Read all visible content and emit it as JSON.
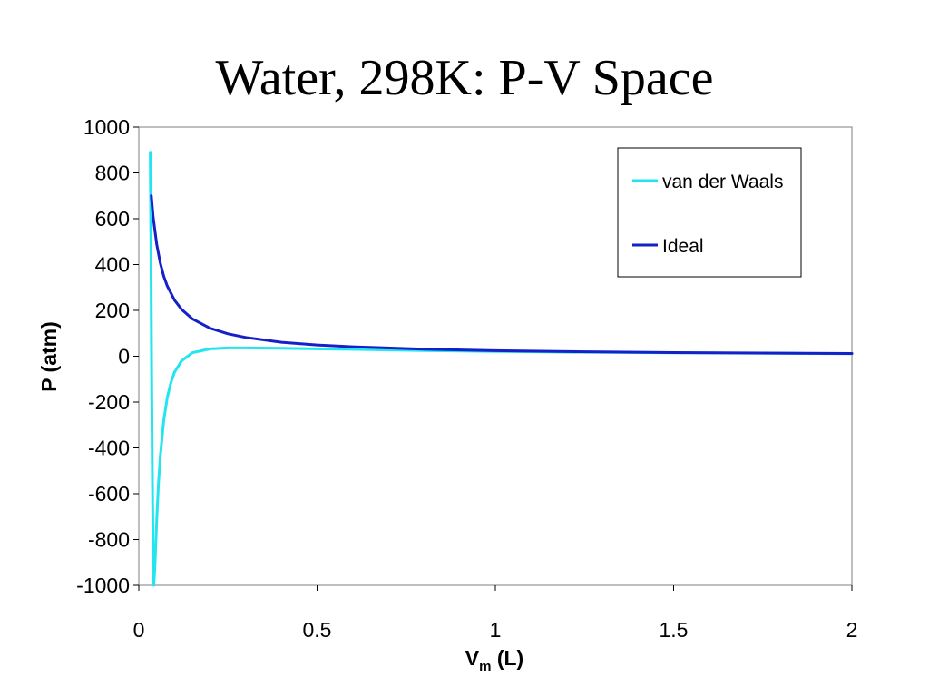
{
  "chart_data": {
    "type": "line",
    "title": "Water, 298K: P-V Space",
    "xlabel": {
      "main": "V",
      "sub": "m",
      "suffix": " (L)"
    },
    "ylabel": "P (atm)",
    "xlim": [
      0,
      2
    ],
    "ylim": [
      -1000,
      1000
    ],
    "xticks": [
      0,
      0.5,
      1,
      1.5,
      2
    ],
    "xtick_labels": [
      "0",
      "0.5",
      "1",
      "1.5",
      "2"
    ],
    "yticks": [
      1000,
      800,
      600,
      400,
      200,
      0,
      -200,
      -400,
      -600,
      -800,
      -1000
    ],
    "ytick_labels": [
      "1000",
      "800",
      "600",
      "400",
      "200",
      "0",
      "-200",
      "-400",
      "-600",
      "-800",
      "-1000"
    ],
    "grid": false,
    "legend_position": "top-right",
    "series": [
      {
        "name": "van der Waals",
        "color": "#22e5f0",
        "x": [
          0.032,
          0.034,
          0.036,
          0.038,
          0.04,
          0.042,
          0.045,
          0.05,
          0.055,
          0.06,
          0.07,
          0.08,
          0.09,
          0.1,
          0.12,
          0.15,
          0.2,
          0.25,
          0.3,
          0.4,
          0.5,
          0.6,
          0.8,
          1.0,
          1.2,
          1.5,
          2.0
        ],
        "y": [
          890,
          450,
          -60,
          -500,
          -840,
          -1000,
          -920,
          -720,
          -560,
          -440,
          -280,
          -180,
          -115,
          -70,
          -20,
          15,
          32,
          36,
          36,
          35,
          32,
          30,
          25,
          21,
          18,
          15,
          11
        ]
      },
      {
        "name": "Ideal",
        "color": "#1520c8",
        "x": [
          0.035,
          0.04,
          0.05,
          0.06,
          0.07,
          0.08,
          0.1,
          0.12,
          0.15,
          0.2,
          0.25,
          0.3,
          0.4,
          0.5,
          0.6,
          0.8,
          1.0,
          1.2,
          1.5,
          2.0
        ],
        "y": [
          700,
          611,
          489,
          408,
          349,
          306,
          245,
          204,
          163,
          122,
          98,
          82,
          61,
          49,
          41,
          31,
          24,
          20,
          16,
          12
        ]
      }
    ]
  }
}
